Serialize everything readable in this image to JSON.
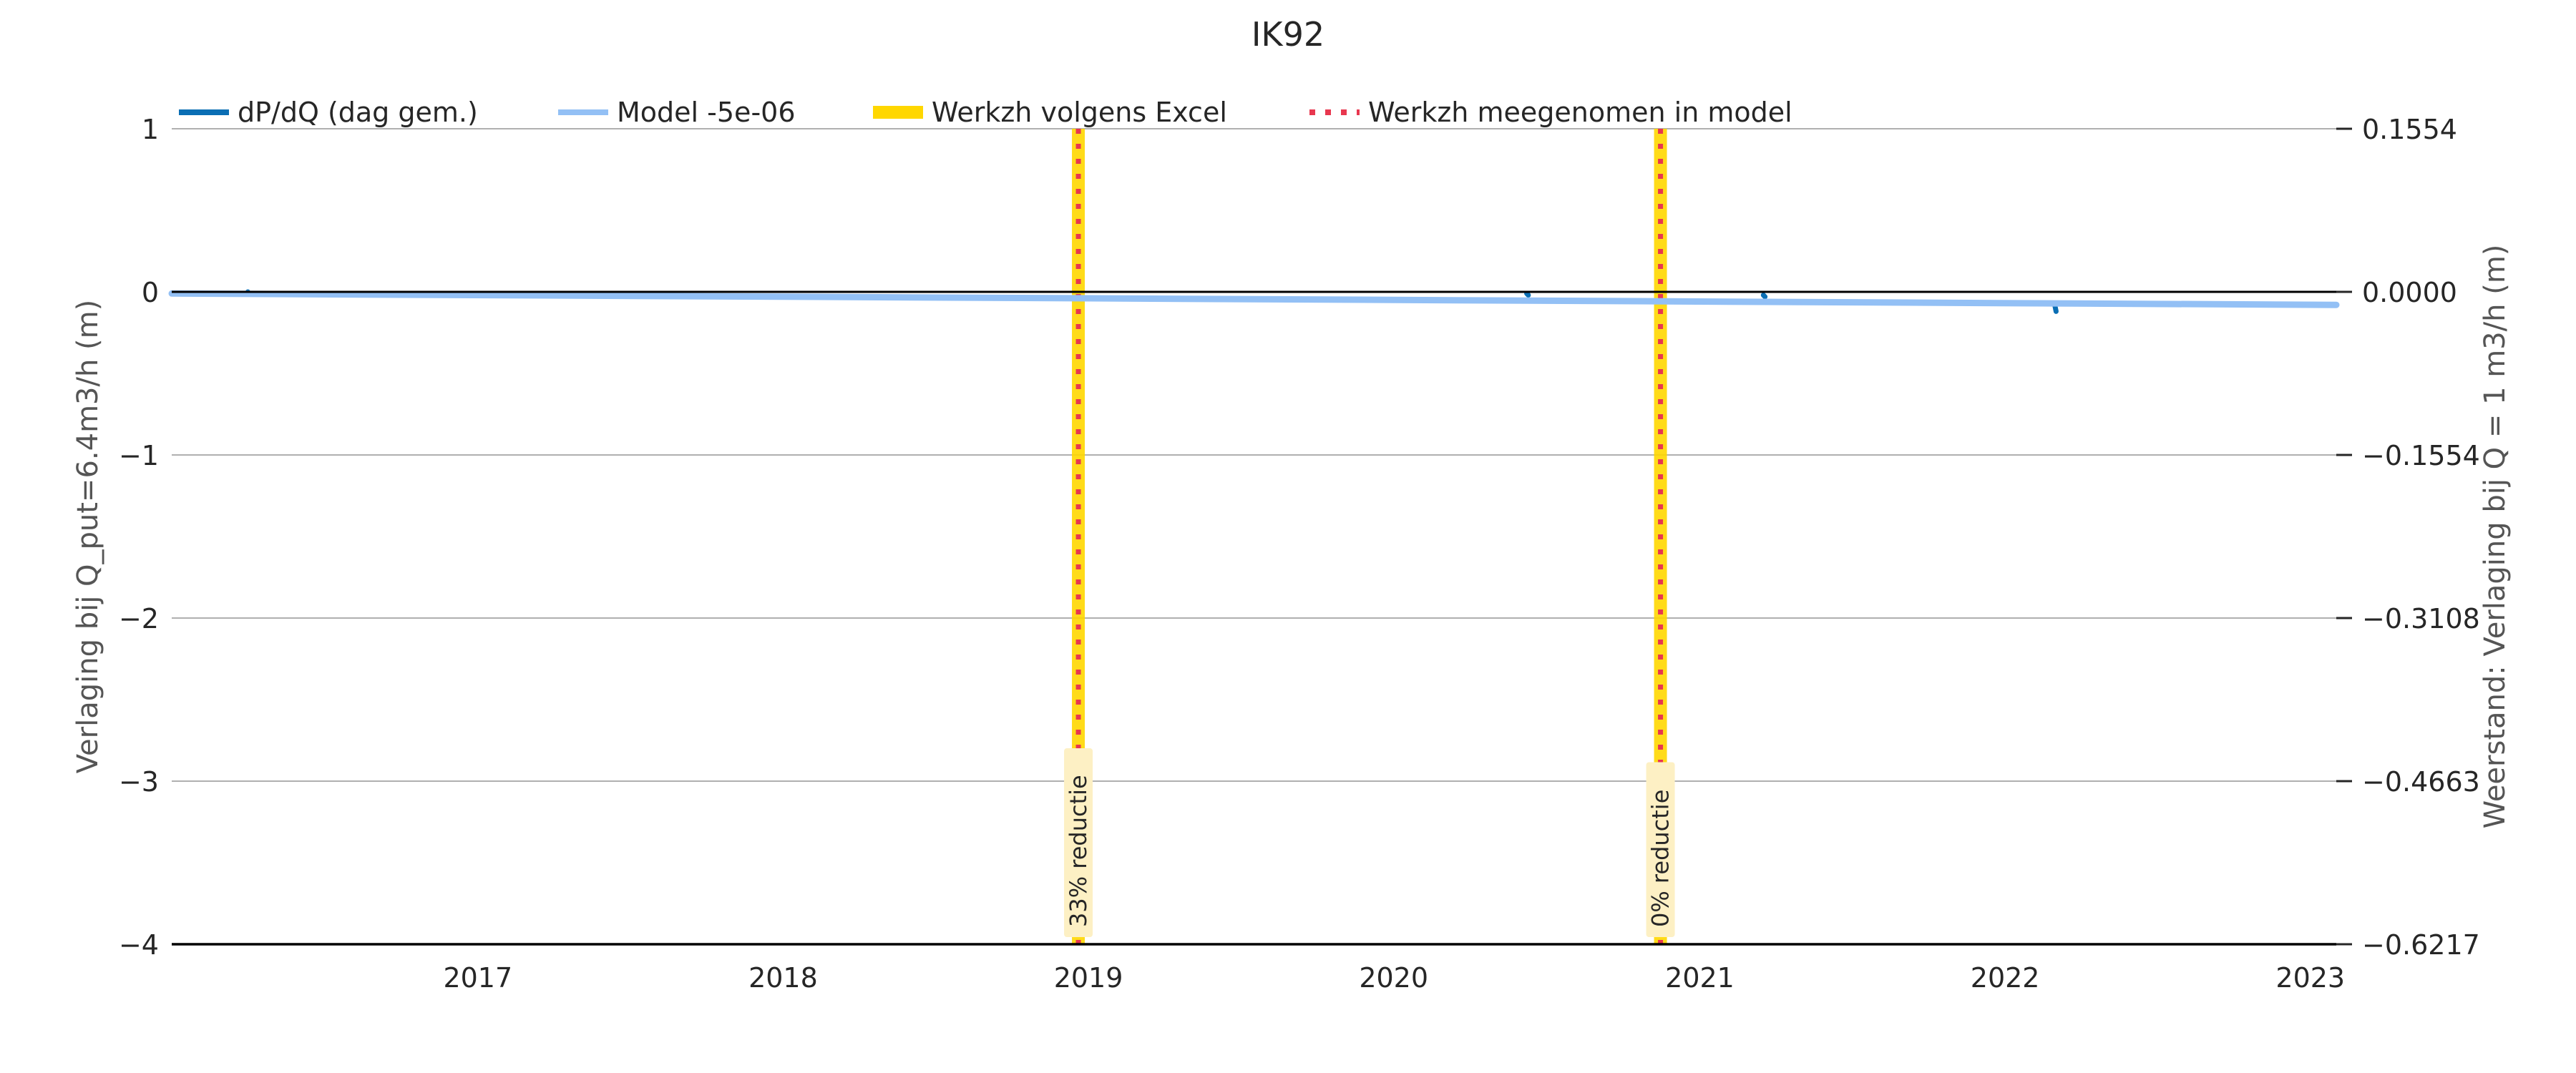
{
  "chart_data": {
    "type": "line",
    "title": "IK92",
    "ylabel_left": "Verlaging bij Q_put=6.4m3/h (m)",
    "ylabel_right": "Weerstand: Verlaging bij Q = 1 m3/h (m)",
    "ylim": [
      -4,
      1
    ],
    "yticks": [
      1,
      0,
      -1,
      -2,
      -3,
      -4
    ],
    "yticks_labels": [
      "1",
      "0",
      "−1",
      "−2",
      "−3",
      "−4"
    ],
    "right_ticks_labels": [
      "0.1554",
      "0.0000",
      "−0.1554",
      "−0.3108",
      "−0.4663",
      "−0.6217"
    ],
    "xlim": [
      "2016-01-01",
      "2023-02-01"
    ],
    "xticks": [
      "2017",
      "2018",
      "2019",
      "2020",
      "2021",
      "2022",
      "2023"
    ],
    "grid": true,
    "legend_placement": "top",
    "legend": [
      {
        "label": "dP/dQ (dag gem.)",
        "color": "#0a6eb4",
        "style": "solid"
      },
      {
        "label": "Model -5e-06",
        "color": "#93c0f5",
        "style": "solid"
      },
      {
        "label": "Werkzh volgens Excel",
        "color": "#ffd700",
        "style": "thick"
      },
      {
        "label": "Werkzh meegenomen in model",
        "color": "#e8374f",
        "style": "dotted"
      }
    ],
    "series": [
      {
        "name": "dP/dQ (dag gem.)",
        "color": "#0a6eb4",
        "points": [
          [
            "2016-04-01",
            0.0
          ],
          [
            "2020-06-08",
            -0.01
          ],
          [
            "2020-06-10",
            -0.02
          ],
          [
            "2021-03-18",
            -0.02
          ],
          [
            "2021-03-20",
            -0.03
          ],
          [
            "2022-03-01",
            -0.07
          ],
          [
            "2022-03-03",
            -0.12
          ]
        ]
      },
      {
        "name": "Model -5e-06",
        "color": "#93c0f5",
        "points": [
          [
            "2016-01-01",
            -0.01
          ],
          [
            "2023-02-01",
            -0.08
          ]
        ]
      }
    ],
    "events": [
      {
        "date": "2018-12-20",
        "label": "33% reductie"
      },
      {
        "date": "2020-11-15",
        "label": "0% reductie"
      }
    ],
    "colors": {
      "event_band": "#ffd700",
      "event_dotted": "#e8374f",
      "label_box": "#fdf0c4",
      "grid": "#b0b0b0",
      "axis": "#000000"
    }
  }
}
